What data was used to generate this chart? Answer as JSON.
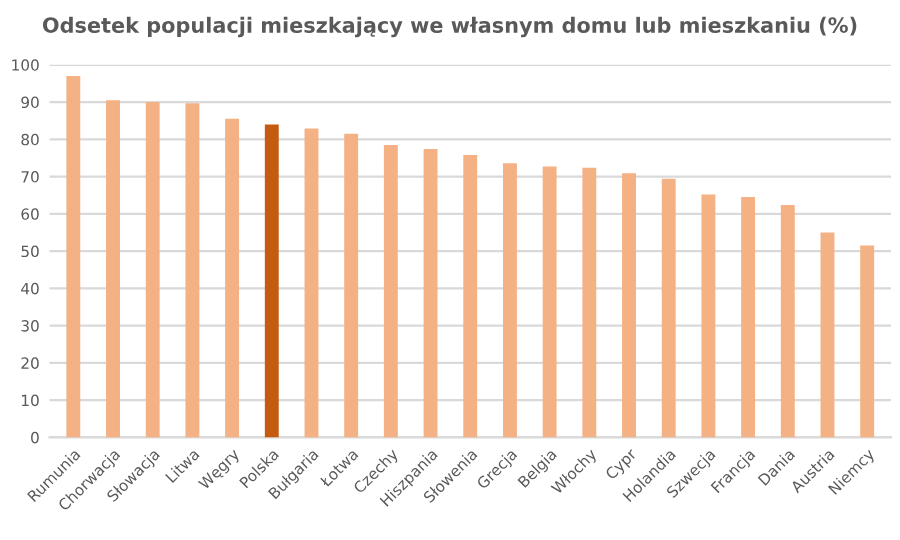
{
  "chart_data": {
    "type": "bar",
    "title": "Odsetek populacji mieszkający we własnym domu lub mieszkaniu (%)",
    "categories": [
      "Rumunia",
      "Chorwacja",
      "Słowacja",
      "Litwa",
      "Węgry",
      "Polska",
      "Bułgaria",
      "Łotwa",
      "Czechy",
      "Hiszpania",
      "Słowenia",
      "Grecja",
      "Belgia",
      "Włochy",
      "Cypr",
      "Holandia",
      "Szwecja",
      "Francja",
      "Dania",
      "Austria",
      "Niemcy"
    ],
    "values": [
      97,
      90.5,
      90,
      89.7,
      85.5,
      84,
      82.9,
      81.5,
      78.5,
      77.4,
      75.8,
      73.6,
      72.7,
      72.4,
      70.9,
      69.4,
      65.2,
      64.5,
      62.4,
      55,
      51.5
    ],
    "colors": [
      "#f4b183",
      "#f4b183",
      "#f4b183",
      "#f4b183",
      "#f4b183",
      "#c55a11",
      "#f4b183",
      "#f4b183",
      "#f4b183",
      "#f4b183",
      "#f4b183",
      "#f4b183",
      "#f4b183",
      "#f4b183",
      "#f4b183",
      "#f4b183",
      "#f4b183",
      "#f4b183",
      "#f4b183",
      "#f4b183",
      "#f4b183"
    ],
    "ylim": [
      0,
      100
    ],
    "yticks": [
      0,
      10,
      20,
      30,
      40,
      50,
      60,
      70,
      80,
      90,
      100
    ],
    "grid": "y"
  }
}
